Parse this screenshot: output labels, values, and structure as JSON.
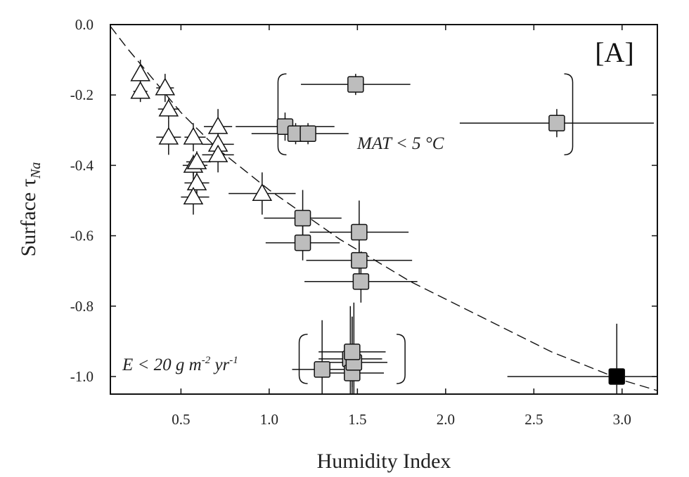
{
  "chart_data": {
    "type": "scatter",
    "xlabel": "Humidity Index",
    "ylabel_main": "Surface τ",
    "ylabel_sub": "Na",
    "panel_label": "[A]",
    "xlim": [
      0.1,
      3.2
    ],
    "ylim": [
      -1.05,
      0.0
    ],
    "xticks": [
      0.5,
      1.0,
      1.5,
      2.0,
      2.5,
      3.0
    ],
    "xtick_labels": [
      "0.5",
      "1.0",
      "1.5",
      "2.0",
      "2.5",
      "3.0"
    ],
    "yticks": [
      0.0,
      -0.2,
      -0.4,
      -0.6,
      -0.8,
      -1.0
    ],
    "ytick_labels": [
      "0.0",
      "-0.2",
      "-0.4",
      "-0.6",
      "-0.8",
      "-1.0"
    ],
    "grid": false,
    "annotations": {
      "mat": {
        "prefix": "MAT < 5 ",
        "unit": "°C"
      },
      "erosion": {
        "prefix": "E < 20 g m",
        "exp1": "-2",
        "mid": " yr",
        "exp2": "-1"
      }
    },
    "series": [
      {
        "marker": "triangle",
        "color": "#ffffff",
        "points": [
          {
            "x": 0.27,
            "y": -0.14,
            "xerr": [
              0.03,
              0.03
            ],
            "yerr": [
              0.04,
              0.04
            ]
          },
          {
            "x": 0.27,
            "y": -0.19,
            "xerr": [
              0.04,
              0.04
            ],
            "yerr": [
              0.03,
              0.03
            ]
          },
          {
            "x": 0.41,
            "y": -0.18,
            "xerr": [
              0.05,
              0.05
            ],
            "yerr": [
              0.04,
              0.04
            ]
          },
          {
            "x": 0.43,
            "y": -0.24,
            "xerr": [
              0.06,
              0.06
            ],
            "yerr": [
              0.03,
              0.03
            ]
          },
          {
            "x": 0.43,
            "y": -0.32,
            "xerr": [
              0.07,
              0.07
            ],
            "yerr": [
              0.05,
              0.05
            ]
          },
          {
            "x": 0.57,
            "y": -0.32,
            "xerr": [
              0.05,
              0.07
            ],
            "yerr": [
              0.04,
              0.04
            ]
          },
          {
            "x": 0.57,
            "y": -0.4,
            "xerr": [
              0.06,
              0.08
            ],
            "yerr": [
              0.03,
              0.03
            ]
          },
          {
            "x": 0.59,
            "y": -0.39,
            "xerr": [
              0.06,
              0.08
            ],
            "yerr": [
              0.03,
              0.03
            ]
          },
          {
            "x": 0.59,
            "y": -0.45,
            "xerr": [
              0.07,
              0.07
            ],
            "yerr": [
              0.04,
              0.04
            ]
          },
          {
            "x": 0.57,
            "y": -0.49,
            "xerr": [
              0.07,
              0.09
            ],
            "yerr": [
              0.05,
              0.08
            ]
          },
          {
            "x": 0.71,
            "y": -0.29,
            "xerr": [
              0.08,
              0.08
            ],
            "yerr": [
              0.05,
              0.05
            ]
          },
          {
            "x": 0.71,
            "y": -0.34,
            "xerr": [
              0.09,
              0.09
            ],
            "yerr": [
              0.04,
              0.04
            ]
          },
          {
            "x": 0.71,
            "y": -0.37,
            "xerr": [
              0.09,
              0.09
            ],
            "yerr": [
              0.05,
              0.05
            ]
          },
          {
            "x": 0.96,
            "y": -0.48,
            "xerr": [
              0.19,
              0.19
            ],
            "yerr": [
              0.06,
              0.06
            ]
          }
        ]
      },
      {
        "marker": "square",
        "color": "#bdbdbd",
        "points": [
          {
            "x": 1.49,
            "y": -0.17,
            "xerr": [
              0.31,
              0.31
            ],
            "yerr": [
              0.03,
              0.03
            ]
          },
          {
            "x": 1.09,
            "y": -0.29,
            "xerr": [
              0.28,
              0.28
            ],
            "yerr": [
              0.04,
              0.04
            ]
          },
          {
            "x": 1.15,
            "y": -0.31,
            "xerr": [
              0.25,
              0.25
            ],
            "yerr": [
              0.03,
              0.03
            ]
          },
          {
            "x": 1.22,
            "y": -0.31,
            "xerr": [
              0.23,
              0.23
            ],
            "yerr": [
              0.03,
              0.03
            ]
          },
          {
            "x": 2.63,
            "y": -0.28,
            "xerr": [
              0.55,
              0.55
            ],
            "yerr": [
              0.04,
              0.04
            ]
          },
          {
            "x": 1.19,
            "y": -0.55,
            "xerr": [
              0.22,
              0.22
            ],
            "yerr": [
              0.08,
              0.08
            ]
          },
          {
            "x": 1.19,
            "y": -0.62,
            "xerr": [
              0.21,
              0.21
            ],
            "yerr": [
              0.05,
              0.05
            ]
          },
          {
            "x": 1.51,
            "y": -0.59,
            "xerr": [
              0.28,
              0.28
            ],
            "yerr": [
              0.09,
              0.09
            ]
          },
          {
            "x": 1.51,
            "y": -0.67,
            "xerr": [
              0.3,
              0.3
            ],
            "yerr": [
              0.05,
              0.05
            ]
          },
          {
            "x": 1.52,
            "y": -0.73,
            "xerr": [
              0.32,
              0.32
            ],
            "yerr": [
              0.06,
              0.06
            ]
          },
          {
            "x": 1.3,
            "y": -0.98,
            "xerr": [
              0.17,
              0.17
            ],
            "yerr": [
              0.14,
              0.14
            ]
          },
          {
            "x": 1.46,
            "y": -0.95,
            "xerr": [
              0.18,
              0.18
            ],
            "yerr": [
              0.15,
              0.15
            ]
          },
          {
            "x": 1.47,
            "y": -0.99,
            "xerr": [
              0.18,
              0.18
            ],
            "yerr": [
              0.16,
              0.16
            ]
          },
          {
            "x": 1.48,
            "y": -0.96,
            "xerr": [
              0.19,
              0.19
            ],
            "yerr": [
              0.17,
              0.17
            ]
          },
          {
            "x": 1.47,
            "y": -0.93,
            "xerr": [
              0.19,
              0.19
            ],
            "yerr": [
              0.1,
              0.1
            ]
          }
        ]
      },
      {
        "marker": "square",
        "color": "#000000",
        "points": [
          {
            "x": 2.97,
            "y": -1.0,
            "xerr": [
              0.62,
              0.62
            ],
            "yerr": [
              0.15,
              0.15
            ]
          }
        ]
      }
    ],
    "fit_curve": {
      "style": "dashed",
      "x": [
        0.1,
        0.2,
        0.3,
        0.4,
        0.5,
        0.6,
        0.7,
        0.8,
        0.9,
        1.0,
        1.2,
        1.4,
        1.6,
        1.8,
        2.0,
        2.2,
        2.4,
        2.6,
        2.8,
        3.0,
        3.2
      ],
      "y": [
        -0.005,
        -0.07,
        -0.13,
        -0.19,
        -0.25,
        -0.3,
        -0.35,
        -0.39,
        -0.43,
        -0.47,
        -0.54,
        -0.61,
        -0.67,
        -0.73,
        -0.78,
        -0.83,
        -0.88,
        -0.93,
        -0.97,
        -1.01,
        -1.04
      ]
    },
    "brackets": [
      {
        "group": "mat",
        "x_left": 1.05,
        "x_right": 2.72,
        "y_top": -0.14,
        "y_bottom": -0.37
      },
      {
        "group": "erosion",
        "x_left": 1.17,
        "x_right": 1.77,
        "y_top": -0.88,
        "y_bottom": -1.02
      }
    ]
  }
}
